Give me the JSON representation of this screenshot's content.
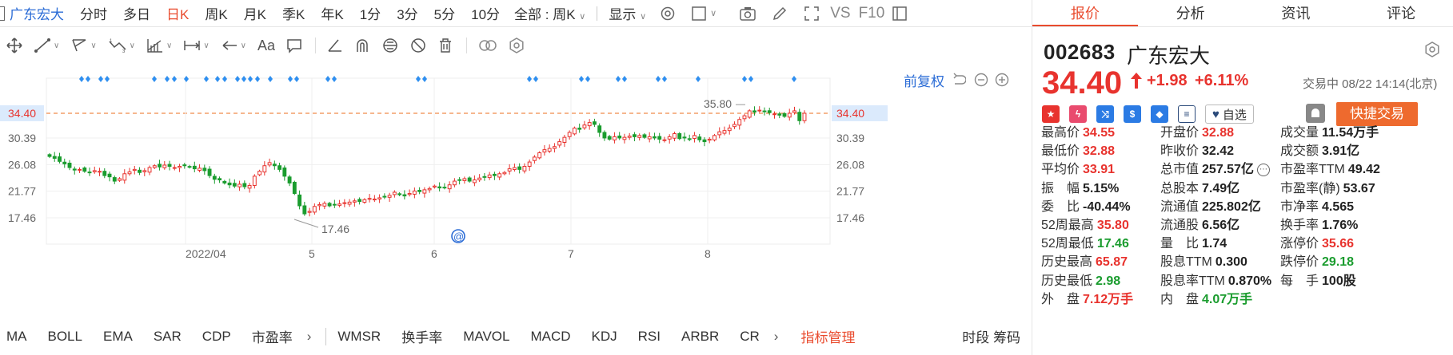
{
  "top_bar": {
    "stock_name": "广东宏大",
    "periods": [
      "分时",
      "多日",
      "日K",
      "周K",
      "月K",
      "季K",
      "年K",
      "1分",
      "3分",
      "5分",
      "10分"
    ],
    "active_period": "日K",
    "range_select": "全部 : 周K",
    "display_label": "显示",
    "vs_label": "VS",
    "f10_label": "F10"
  },
  "chart": {
    "restore_label": "前复权",
    "y_ticks": [
      "34.40",
      "30.39",
      "26.08",
      "21.77",
      "17.46"
    ],
    "x_ticks": [
      "2022/04",
      "5",
      "6",
      "7",
      "8"
    ],
    "high_label": "35.80",
    "low_label": "17.46",
    "current_price_label": "34.40"
  },
  "chart_data": {
    "type": "candlestick",
    "ylim": [
      15,
      37
    ],
    "current_price": 34.4,
    "high_annotation": 35.8,
    "low_annotation": 17.46,
    "series": [
      {
        "values": [
          27.4,
          27.1,
          26.6,
          26.2,
          25.6,
          25.2,
          25.3,
          25.0,
          24.8,
          25.1,
          25.0,
          24.3,
          24.1,
          23.4,
          23.8,
          24.6,
          24.9,
          25.3,
          24.8,
          25.1,
          25.6,
          25.9,
          25.7,
          26.0,
          25.8,
          25.6,
          25.8,
          25.9,
          25.7,
          25.4,
          25.5,
          25.1,
          24.3,
          23.7,
          23.6,
          23.1,
          22.8,
          22.6,
          22.9,
          22.5,
          22.7,
          24.2,
          25.0,
          25.9,
          26.4,
          25.9,
          25.3,
          24.2,
          23.1,
          21.4,
          19.4,
          18.1,
          18.5,
          19.3,
          19.6,
          19.8,
          19.4,
          19.6,
          19.7,
          19.9,
          20.0,
          20.2,
          20.1,
          20.4,
          20.6,
          20.5,
          20.7,
          20.9,
          21.1,
          21.6,
          21.2,
          21.0,
          21.4,
          21.8,
          21.7,
          22.0,
          22.2,
          22.6,
          22.3,
          22.4,
          22.8,
          23.4,
          23.6,
          23.8,
          23.4,
          23.6,
          23.9,
          24.1,
          24.4,
          24.3,
          24.6,
          24.8,
          25.4,
          25.6,
          25.3,
          25.8,
          26.5,
          27.3,
          28.0,
          28.5,
          28.7,
          29.0,
          29.8,
          30.5,
          31.3,
          32.0,
          31.8,
          32.5,
          32.9,
          32.6,
          31.3,
          30.4,
          30.2,
          30.6,
          30.4,
          30.5,
          30.7,
          30.6,
          30.8,
          30.5,
          30.6,
          30.4,
          30.2,
          30.1,
          30.6,
          31.1,
          30.3,
          30.4,
          30.2,
          30.8,
          30.1,
          29.8,
          30.2,
          30.8,
          31.4,
          31.6,
          32.0,
          32.6,
          33.4,
          34.0,
          34.8,
          34.6,
          34.9,
          34.7,
          34.5,
          34.3,
          34.1,
          33.9,
          34.4,
          34.8,
          33.2,
          34.4
        ]
      }
    ]
  },
  "indicators": {
    "items": [
      "MA",
      "BOLL",
      "EMA",
      "SAR",
      "CDP",
      "市盈率",
      "WMSR",
      "换手率",
      "MAVOL",
      "MACD",
      "KDJ",
      "RSI",
      "ARBR",
      "CR"
    ],
    "mgmt": "指标管理",
    "extra": "时段 筹码"
  },
  "panel": {
    "tabs": [
      "报价",
      "分析",
      "资讯",
      "评论"
    ],
    "active_tab": "报价",
    "code": "002683",
    "name": "广东宏大",
    "price": "34.40",
    "change": "+1.98",
    "change_pct": "+6.11%",
    "status": "交易中 08/22 14:14(北京)",
    "watch_label": "自选",
    "trade_label": "快捷交易"
  },
  "stats": {
    "c1": [
      {
        "label": "最高价",
        "value": "34.55",
        "color": "red"
      },
      {
        "label": "最低价",
        "value": "32.88",
        "color": "red"
      },
      {
        "label": "平均价",
        "value": "33.91",
        "color": "red"
      },
      {
        "label": "振　幅",
        "value": "5.15%",
        "color": ""
      },
      {
        "label": "委　比",
        "value": "-40.44%",
        "color": ""
      },
      {
        "label": "52周最高",
        "value": "35.80",
        "color": "red"
      },
      {
        "label": "52周最低",
        "value": "17.46",
        "color": "green"
      },
      {
        "label": "历史最高",
        "value": "65.87",
        "color": "red"
      },
      {
        "label": "历史最低",
        "value": "2.98",
        "color": "green"
      },
      {
        "label": "外　盘",
        "value": "7.12万手",
        "color": "red"
      }
    ],
    "c2": [
      {
        "label": "开盘价",
        "value": "32.88",
        "color": "red"
      },
      {
        "label": "昨收价",
        "value": "32.42",
        "color": ""
      },
      {
        "label": "总市值",
        "value": "257.57亿",
        "color": ""
      },
      {
        "label": "总股本",
        "value": "7.49亿",
        "color": ""
      },
      {
        "label": "流通值",
        "value": "225.802亿",
        "color": ""
      },
      {
        "label": "流通股",
        "value": "6.56亿",
        "color": ""
      },
      {
        "label": "量　比",
        "value": "1.74",
        "color": ""
      },
      {
        "label": "股息TTM",
        "value": "0.300",
        "color": ""
      },
      {
        "label": "股息率TTM",
        "value": "0.870%",
        "color": ""
      },
      {
        "label": "内　盘",
        "value": "4.07万手",
        "color": "green"
      }
    ],
    "c3": [
      {
        "label": "成交量",
        "value": "11.54万手",
        "color": ""
      },
      {
        "label": "成交额",
        "value": "3.91亿",
        "color": ""
      },
      {
        "label": "市盈率TTM",
        "value": "49.42",
        "color": ""
      },
      {
        "label": "市盈率(静)",
        "value": "53.67",
        "color": ""
      },
      {
        "label": "市净率",
        "value": "4.565",
        "color": ""
      },
      {
        "label": "换手率",
        "value": "1.76%",
        "color": ""
      },
      {
        "label": "涨停价",
        "value": "35.66",
        "color": "red"
      },
      {
        "label": "跌停价",
        "value": "29.18",
        "color": "green"
      },
      {
        "label": "每　手",
        "value": "100股",
        "color": ""
      },
      {
        "label": "",
        "value": "",
        "color": ""
      }
    ]
  }
}
